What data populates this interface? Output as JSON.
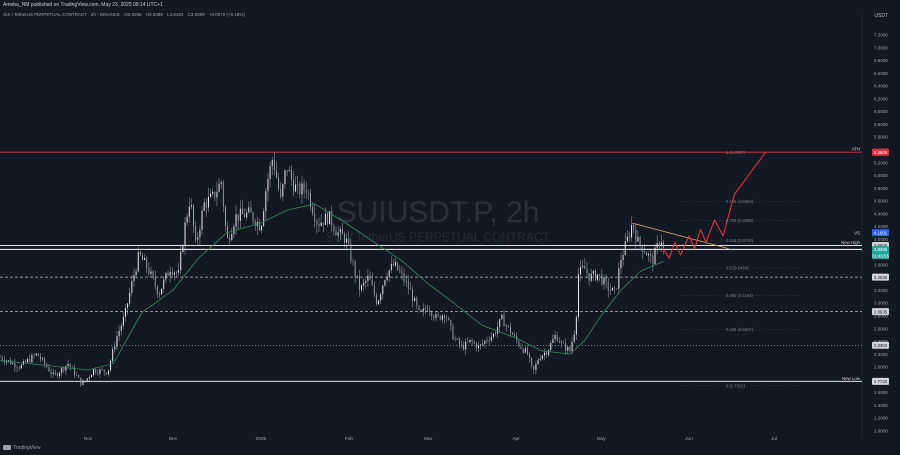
{
  "header": {
    "published": "Ameba_NM published on TradingView.com, May 23, 2025 09:14 UTC+1",
    "symbol": "SUI / TetherUS PERPETUAL CONTRACT · 2h · BINANCE",
    "open": "O3.8256",
    "high": "H3.8389",
    "low": "L3.8193",
    "close": "C3.8389",
    "change": "+0.0072 (+0.19%)"
  },
  "watermark": {
    "ticker": "SUIUSDT.P, 2h",
    "name": "SUI / TetherUS PERPETUAL CONTRACT"
  },
  "footer": {
    "brand": "TradingView"
  },
  "colors": {
    "background": "#141823",
    "candle": "#c8ccd4",
    "ma_line": "#2e8b57",
    "projection": "#e0313b",
    "ath_line": "#e0313b",
    "trendline": "#d8a66a",
    "fib_label": "#787b86"
  },
  "chart_data": {
    "type": "candlestick",
    "title": "SUIUSDT.P, 2h",
    "currency": "USDT",
    "y_range": [
      0.9,
      7.4
    ],
    "y_ticks": [
      "7.2000",
      "7.0000",
      "6.8000",
      "6.6000",
      "6.4000",
      "6.2000",
      "6.0000",
      "5.8000",
      "5.6000",
      "5.4000",
      "5.2000",
      "5.0000",
      "4.8000",
      "4.6000",
      "4.4000",
      "4.2000",
      "4.0000",
      "3.6000",
      "3.4000",
      "3.2000",
      "3.0000",
      "2.8000",
      "2.6000",
      "2.4000",
      "2.2000",
      "2.0000",
      "1.8000",
      "1.6000",
      "1.4000",
      "1.2000",
      "1.0000"
    ],
    "x_ticks": [
      "Nov",
      "Dec",
      "2025",
      "Feb",
      "Mar",
      "Apr",
      "May",
      "Jun",
      "Jul"
    ],
    "x_tick_dates": [
      "2024-11-01",
      "2024-12-01",
      "2025-01-01",
      "2025-02-01",
      "2025-03-01",
      "2025-04-01",
      "2025-05-01",
      "2025-06-01",
      "2025-07-01"
    ],
    "x_range": [
      "2024-10-01",
      "2025-08-01"
    ],
    "price_path": [
      [
        "2024-10-01",
        2.15
      ],
      [
        "2024-10-08",
        2.0
      ],
      [
        "2024-10-14",
        2.2
      ],
      [
        "2024-10-20",
        1.85
      ],
      [
        "2024-10-25",
        2.05
      ],
      [
        "2024-10-30",
        1.72
      ],
      [
        "2024-11-03",
        1.95
      ],
      [
        "2024-11-08",
        1.92
      ],
      [
        "2024-11-11",
        2.45
      ],
      [
        "2024-11-14",
        2.8
      ],
      [
        "2024-11-17",
        3.4
      ],
      [
        "2024-11-19",
        3.75
      ],
      [
        "2024-11-22",
        3.55
      ],
      [
        "2024-11-26",
        3.15
      ],
      [
        "2024-11-30",
        3.55
      ],
      [
        "2024-12-03",
        3.45
      ],
      [
        "2024-12-05",
        4.15
      ],
      [
        "2024-12-07",
        4.65
      ],
      [
        "2024-12-09",
        3.9
      ],
      [
        "2024-12-12",
        4.55
      ],
      [
        "2024-12-15",
        4.65
      ],
      [
        "2024-12-18",
        4.9
      ],
      [
        "2024-12-20",
        3.95
      ],
      [
        "2024-12-23",
        4.35
      ],
      [
        "2024-12-28",
        4.4
      ],
      [
        "2025-01-01",
        4.2
      ],
      [
        "2025-01-03",
        4.85
      ],
      [
        "2025-01-05",
        5.25
      ],
      [
        "2025-01-06",
        5.1
      ],
      [
        "2025-01-08",
        4.6
      ],
      [
        "2025-01-10",
        5.15
      ],
      [
        "2025-01-12",
        4.9
      ],
      [
        "2025-01-14",
        4.75
      ],
      [
        "2025-01-17",
        4.8
      ],
      [
        "2025-01-21",
        4.25
      ],
      [
        "2025-01-25",
        4.35
      ],
      [
        "2025-01-28",
        4.1
      ],
      [
        "2025-01-31",
        4.0
      ],
      [
        "2025-02-03",
        3.5
      ],
      [
        "2025-02-05",
        3.2
      ],
      [
        "2025-02-08",
        3.4
      ],
      [
        "2025-02-11",
        3.0
      ],
      [
        "2025-02-14",
        3.45
      ],
      [
        "2025-02-17",
        3.6
      ],
      [
        "2025-02-20",
        3.4
      ],
      [
        "2025-02-23",
        3.15
      ],
      [
        "2025-02-26",
        2.8
      ],
      [
        "2025-03-01",
        2.95
      ],
      [
        "2025-03-04",
        2.75
      ],
      [
        "2025-03-07",
        2.85
      ],
      [
        "2025-03-10",
        2.45
      ],
      [
        "2025-03-13",
        2.3
      ],
      [
        "2025-03-16",
        2.4
      ],
      [
        "2025-03-19",
        2.3
      ],
      [
        "2025-03-22",
        2.45
      ],
      [
        "2025-03-24",
        2.5
      ],
      [
        "2025-03-27",
        2.75
      ],
      [
        "2025-03-30",
        2.55
      ],
      [
        "2025-04-02",
        2.35
      ],
      [
        "2025-04-05",
        2.2
      ],
      [
        "2025-04-07",
        1.9
      ],
      [
        "2025-04-09",
        2.15
      ],
      [
        "2025-04-12",
        2.25
      ],
      [
        "2025-04-15",
        2.5
      ],
      [
        "2025-04-17",
        2.35
      ],
      [
        "2025-04-20",
        2.25
      ],
      [
        "2025-04-22",
        2.65
      ],
      [
        "2025-04-23",
        3.45
      ],
      [
        "2025-04-25",
        3.55
      ],
      [
        "2025-04-27",
        3.4
      ],
      [
        "2025-04-30",
        3.45
      ],
      [
        "2025-05-03",
        3.25
      ],
      [
        "2025-05-06",
        3.15
      ],
      [
        "2025-05-08",
        3.7
      ],
      [
        "2025-05-10",
        3.95
      ],
      [
        "2025-05-12",
        4.25
      ],
      [
        "2025-05-14",
        3.95
      ],
      [
        "2025-05-16",
        3.85
      ],
      [
        "2025-05-19",
        3.65
      ],
      [
        "2025-05-21",
        3.9
      ],
      [
        "2025-05-22",
        4.05
      ],
      [
        "2025-05-23",
        3.84
      ]
    ],
    "ma_path": [
      [
        "2024-10-01",
        2.1
      ],
      [
        "2024-11-01",
        1.95
      ],
      [
        "2024-11-10",
        2.05
      ],
      [
        "2024-11-20",
        2.85
      ],
      [
        "2024-12-01",
        3.2
      ],
      [
        "2024-12-10",
        3.7
      ],
      [
        "2024-12-20",
        4.1
      ],
      [
        "2025-01-01",
        4.25
      ],
      [
        "2025-01-10",
        4.45
      ],
      [
        "2025-01-20",
        4.55
      ],
      [
        "2025-01-31",
        4.25
      ],
      [
        "2025-02-10",
        3.95
      ],
      [
        "2025-02-20",
        3.65
      ],
      [
        "2025-03-01",
        3.3
      ],
      [
        "2025-03-10",
        3.0
      ],
      [
        "2025-03-20",
        2.65
      ],
      [
        "2025-04-01",
        2.45
      ],
      [
        "2025-04-10",
        2.25
      ],
      [
        "2025-04-20",
        2.2
      ],
      [
        "2025-04-25",
        2.4
      ],
      [
        "2025-05-01",
        2.8
      ],
      [
        "2025-05-08",
        3.2
      ],
      [
        "2025-05-15",
        3.5
      ],
      [
        "2025-05-23",
        3.65
      ]
    ],
    "projection_path": [
      [
        "2025-05-23",
        3.84
      ],
      [
        "2025-05-25",
        3.7
      ],
      [
        "2025-05-27",
        3.95
      ],
      [
        "2025-05-29",
        3.75
      ],
      [
        "2025-06-01",
        4.05
      ],
      [
        "2025-06-03",
        3.85
      ],
      [
        "2025-06-05",
        4.15
      ],
      [
        "2025-06-07",
        3.95
      ],
      [
        "2025-06-10",
        4.3
      ],
      [
        "2025-06-13",
        4.05
      ],
      [
        "2025-06-17",
        4.7
      ],
      [
        "2025-06-22",
        5.0
      ],
      [
        "2025-06-28",
        5.36
      ]
    ],
    "trendline": [
      [
        "2025-05-12",
        4.25
      ],
      [
        "2025-06-15",
        3.85
      ]
    ],
    "horizontal_levels": [
      {
        "value": 5.3609,
        "label": "ATH",
        "tag": "5.3609",
        "style": "solid",
        "color": "#e0313b"
      },
      {
        "value": 3.8389,
        "label": "",
        "tag": "3.8389",
        "style": "solid",
        "color": "#ffffff"
      },
      {
        "value": 3.9,
        "label": "New High",
        "tag": "3.9000",
        "style": "solid",
        "color": "#ffffff"
      },
      {
        "value": 3.404,
        "label": "",
        "tag": "3.4040",
        "style": "dashed",
        "color": "#b2b5be"
      },
      {
        "value": 2.8635,
        "label": "",
        "tag": "2.8635",
        "style": "dashed",
        "color": "#b2b5be"
      },
      {
        "value": 2.3363,
        "label": "",
        "tag": "2.3363",
        "style": "dotted",
        "color": "#b2b5be"
      },
      {
        "value": 1.772,
        "label": "New Low",
        "tag": "1.7720",
        "style": "solid",
        "color": "#ffffff"
      }
    ],
    "fib_levels": [
      {
        "label": "1 (5.3607)",
        "value": 5.3607
      },
      {
        "label": "0.786 (4.5883)",
        "value": 4.5883
      },
      {
        "label": "0.705 (4.2930)",
        "value": 4.293
      },
      {
        "label": "0.618 (3.9793)",
        "value": 3.9793
      },
      {
        "label": "0.5 (3.5454)",
        "value": 3.5454
      },
      {
        "label": "0.382 (3.1155)",
        "value": 3.1155
      },
      {
        "label": "0.236 (2.5837)",
        "value": 2.5837
      },
      {
        "label": "0 (1.7021)",
        "value": 1.7021
      }
    ],
    "price_tags": [
      {
        "text": "4.1001",
        "value": 4.1001,
        "color": "#2962ff",
        "label": "VS"
      },
      {
        "text": "3.8389",
        "value": 3.8389,
        "color": "#26a69a"
      },
      {
        "text": "01:45:55",
        "value": 3.74,
        "color": "#26a69a"
      }
    ]
  }
}
